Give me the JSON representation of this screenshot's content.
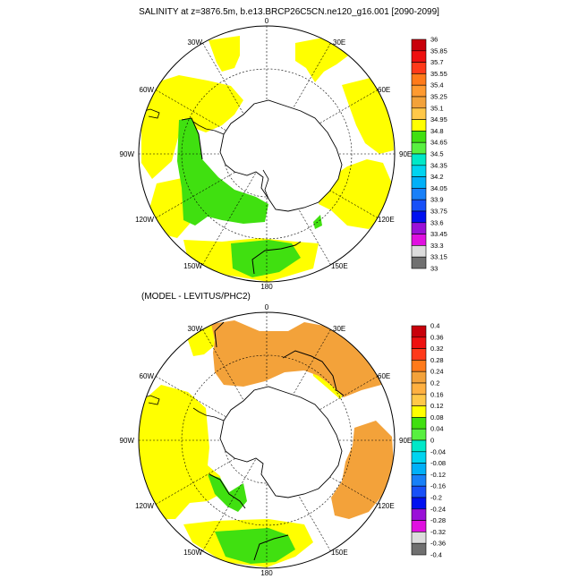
{
  "top_panel": {
    "title": "SALINITY at z=3876.5m, b.e13.BRCP26C5CN.ne120_g16.001 [2090-2099]",
    "lon_labels": {
      "n": "0",
      "nne": "30E",
      "ene": "60E",
      "e": "90E",
      "ese": "120E",
      "sse": "150E",
      "s": "180",
      "ssw": "150W",
      "wsw": "120W",
      "w": "90W",
      "wnw": "60W",
      "nnw": "30W"
    },
    "colorbar": {
      "labels": [
        "36",
        "35.85",
        "35.7",
        "35.55",
        "35.4",
        "35.25",
        "35.1",
        "34.95",
        "34.8",
        "34.65",
        "34.5",
        "34.35",
        "34.2",
        "34.05",
        "33.9",
        "33.75",
        "33.6",
        "33.45",
        "33.3",
        "33.15",
        "33"
      ],
      "colors": [
        "#c8000a",
        "#ee1010",
        "#ff3a1a",
        "#ff7a1a",
        "#ff9a30",
        "#f3a23a",
        "#ffc848",
        "#ffff00",
        "#40e010",
        "#58f040",
        "#00e8c8",
        "#00d4f0",
        "#00b0f8",
        "#1880f8",
        "#1850f8",
        "#0010f0",
        "#9a10d8",
        "#e010e0",
        "#dcdcdc",
        "#707070"
      ]
    },
    "fills": {
      "yellow": "#ffff00",
      "green": "#40e010"
    }
  },
  "bottom_panel": {
    "title": "(MODEL - LEVITUS/PHC2)",
    "lon_labels": {
      "n": "0",
      "nne": "30E",
      "ene": "60E",
      "e": "90E",
      "ese": "120E",
      "sse": "150E",
      "s": "180",
      "ssw": "150W",
      "wsw": "120W",
      "w": "90W",
      "wnw": "60W",
      "nnw": "30W"
    },
    "colorbar": {
      "labels": [
        "0.4",
        "0.36",
        "0.32",
        "0.28",
        "0.24",
        "0.2",
        "0.16",
        "0.12",
        "0.08",
        "0.04",
        "0",
        "-0.04",
        "-0.08",
        "-0.12",
        "-0.16",
        "-0.2",
        "-0.24",
        "-0.28",
        "-0.32",
        "-0.36",
        "-0.4"
      ],
      "colors": [
        "#c8000a",
        "#ee1010",
        "#ff3a1a",
        "#ff7a1a",
        "#f3a23a",
        "#ffb040",
        "#ffc848",
        "#ffff00",
        "#40e010",
        "#58f040",
        "#00e8c8",
        "#00d4f0",
        "#00b0f8",
        "#1880f8",
        "#1850f8",
        "#0010f0",
        "#9a10d8",
        "#e010e0",
        "#dcdcdc",
        "#707070"
      ]
    },
    "fills": {
      "yellow": "#ffff00",
      "orange": "#f3a23a",
      "green": "#40e010"
    }
  }
}
